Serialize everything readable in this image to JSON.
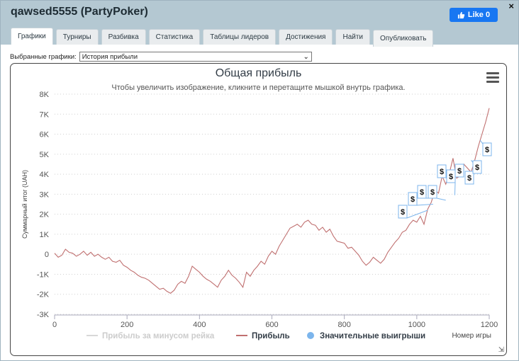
{
  "window": {
    "title": "qawsed5555 (PartyPoker)",
    "close_glyph": "×",
    "like_label": "Like 0"
  },
  "tabs": [
    {
      "label": "Графики"
    },
    {
      "label": "Турниры"
    },
    {
      "label": "Разбивка"
    },
    {
      "label": "Статистика"
    },
    {
      "label": "Таблицы лидеров"
    },
    {
      "label": "Достижения"
    },
    {
      "label": "Найти"
    },
    {
      "label": "Опубликовать"
    }
  ],
  "selector": {
    "label": "Выбранные графики:",
    "value": "История прибыли"
  },
  "colors": {
    "profit_line": "#c07070",
    "rake_line": "#d8d8d8",
    "wins_marker": "#7cb5ec",
    "win_box_border": "#7cb5ec"
  },
  "chart_data": {
    "type": "line",
    "title": "Общая прибыль",
    "subtitle": "Чтобы увеличить изображение, кликните и перетащите мышкой внутрь графика.",
    "xlabel": "Номер игры",
    "ylabel": "Суммарный итог (UAH)",
    "xlim": [
      0,
      1200
    ],
    "ylim": [
      -3000,
      8000
    ],
    "x_ticks": [
      0,
      200,
      400,
      600,
      800,
      1000,
      1200
    ],
    "y_ticks": [
      -3000,
      -2000,
      -1000,
      0,
      1000,
      2000,
      3000,
      4000,
      5000,
      6000,
      7000,
      8000
    ],
    "y_tick_labels": [
      "-3K",
      "-2K",
      "-1K",
      "0",
      "1K",
      "2K",
      "3K",
      "4K",
      "5K",
      "6K",
      "7K",
      "8K"
    ],
    "x_tick_labels": [
      "0",
      "200",
      "400",
      "600",
      "800",
      "1000",
      "1200"
    ],
    "grid": "horizontal-dotted",
    "legend_position": "bottom",
    "series": [
      {
        "name": "Прибыль за минусом рейка",
        "visible": false,
        "x": [],
        "y": []
      },
      {
        "name": "Прибыль",
        "x": [
          0,
          10,
          20,
          30,
          40,
          50,
          60,
          70,
          80,
          90,
          100,
          110,
          120,
          130,
          140,
          150,
          160,
          170,
          180,
          190,
          200,
          210,
          220,
          230,
          240,
          250,
          260,
          270,
          280,
          290,
          300,
          310,
          320,
          330,
          340,
          350,
          360,
          370,
          380,
          390,
          400,
          410,
          420,
          430,
          440,
          450,
          460,
          470,
          480,
          490,
          500,
          510,
          520,
          530,
          540,
          550,
          560,
          570,
          580,
          590,
          600,
          610,
          620,
          630,
          640,
          650,
          660,
          670,
          680,
          690,
          700,
          710,
          720,
          730,
          740,
          750,
          760,
          770,
          780,
          790,
          800,
          810,
          820,
          830,
          840,
          850,
          860,
          870,
          880,
          890,
          900,
          910,
          920,
          930,
          940,
          950,
          960,
          970,
          980,
          990,
          1000,
          1010,
          1020,
          1030,
          1040,
          1050,
          1060,
          1070,
          1080,
          1090,
          1100,
          1110,
          1120,
          1130,
          1140,
          1150,
          1160,
          1170,
          1180,
          1190,
          1200
        ],
        "y": [
          50,
          -150,
          -50,
          250,
          100,
          50,
          -100,
          0,
          150,
          -50,
          100,
          -100,
          0,
          -150,
          -250,
          -150,
          -350,
          -400,
          -300,
          -550,
          -650,
          -800,
          -900,
          -1050,
          -1150,
          -1200,
          -1300,
          -1450,
          -1600,
          -1750,
          -1700,
          -1850,
          -1950,
          -1800,
          -1500,
          -1350,
          -1450,
          -1100,
          -600,
          -750,
          -900,
          -1100,
          -1250,
          -1350,
          -1500,
          -1650,
          -1300,
          -1100,
          -800,
          -1050,
          -1200,
          -1400,
          -1650,
          -900,
          -1100,
          -800,
          -600,
          -350,
          -500,
          -100,
          150,
          0,
          400,
          700,
          1000,
          1300,
          1400,
          1500,
          1350,
          1600,
          1700,
          1500,
          1450,
          1200,
          1350,
          1100,
          1250,
          900,
          650,
          600,
          550,
          300,
          350,
          150,
          -50,
          -350,
          -550,
          -400,
          -150,
          -300,
          -450,
          -250,
          100,
          350,
          600,
          800,
          1100,
          1200,
          1500,
          1700,
          1600,
          1900,
          1500,
          2250,
          2600,
          3200,
          3050,
          3900,
          3500,
          4050,
          4800,
          3800,
          3900,
          4500,
          4300,
          4100,
          4700,
          5400,
          6000,
          6600,
          7300
        ]
      }
    ],
    "big_wins": {
      "name": "Значительные выигрыши",
      "marker_label": "$",
      "x": [
        1030,
        1045,
        1055,
        1080,
        1095,
        1105,
        1110,
        1140,
        1150,
        1175
      ],
      "y": [
        2200,
        2500,
        2800,
        2700,
        3600,
        2950,
        4100,
        3900,
        4700,
        5700
      ]
    }
  }
}
